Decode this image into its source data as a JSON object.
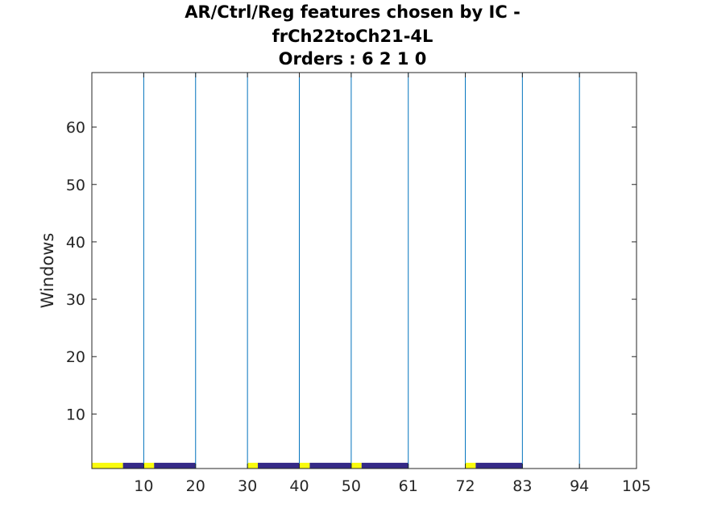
{
  "chart_data": {
    "type": "heatmap",
    "title_lines": [
      "AR/Ctrl/Reg features chosen by IC -",
      "frCh22toCh21-4L",
      "Orders : 6 2 1 0"
    ],
    "xlabel": "",
    "ylabel": "Windows",
    "xlim": [
      0,
      105
    ],
    "ylim": [
      0.5,
      69.5
    ],
    "x_tick_labels": [
      "10",
      "20",
      "30",
      "40",
      "50",
      "61",
      "72",
      "83",
      "94",
      "105"
    ],
    "x_tick_values": [
      10,
      20,
      30,
      40,
      50,
      61,
      72,
      83,
      94,
      105
    ],
    "y_ticks": [
      10,
      20,
      30,
      40,
      50,
      60
    ],
    "vertical_lines": [
      10,
      20,
      30,
      40,
      50,
      61,
      72,
      83,
      94
    ],
    "row_window": 1,
    "segments": [
      {
        "from": 0,
        "to": 6,
        "state": "selected"
      },
      {
        "from": 6,
        "to": 10,
        "state": "unselected"
      },
      {
        "from": 10,
        "to": 12,
        "state": "selected"
      },
      {
        "from": 12,
        "to": 20,
        "state": "unselected"
      },
      {
        "from": 30,
        "to": 32,
        "state": "selected"
      },
      {
        "from": 32,
        "to": 40,
        "state": "unselected"
      },
      {
        "from": 40,
        "to": 42,
        "state": "selected"
      },
      {
        "from": 42,
        "to": 50,
        "state": "unselected"
      },
      {
        "from": 50,
        "to": 52,
        "state": "selected"
      },
      {
        "from": 52,
        "to": 61,
        "state": "unselected"
      },
      {
        "from": 72,
        "to": 74,
        "state": "selected"
      },
      {
        "from": 74,
        "to": 83,
        "state": "unselected"
      }
    ],
    "colors": {
      "selected": "#f9fb0e",
      "unselected": "#352a87",
      "vertical_line": "#0072bd",
      "axis": "#262626"
    }
  }
}
